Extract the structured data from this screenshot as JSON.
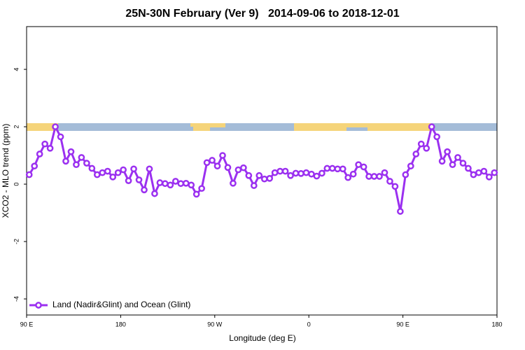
{
  "chart_data": {
    "type": "line",
    "title": "25N-30N February (Ver 9)   2014-09-06 to 2018-12-01",
    "x_label": "Longitude (deg E)",
    "y_label": "XCO2 - MLO trend (ppm)",
    "xlim": [
      90,
      540
    ],
    "xticks": [
      {
        "value": 90,
        "label": "90 E"
      },
      {
        "value": 180,
        "label": "180"
      },
      {
        "value": 270,
        "label": "90 W"
      },
      {
        "value": 360,
        "label": "0"
      },
      {
        "value": 450,
        "label": "90 E"
      },
      {
        "value": 540,
        "label": "180"
      }
    ],
    "ylim": [
      -4.56,
      5.49
    ],
    "yticks": [
      -4,
      -2,
      0,
      2,
      4
    ],
    "legend_position": "bottom-left",
    "x": [
      92.5,
      97.5,
      102.5,
      107.5,
      112.5,
      117.5,
      122.5,
      127.5,
      132.5,
      137.5,
      142.5,
      147.5,
      152.5,
      157.5,
      162.5,
      167.5,
      172.5,
      177.5,
      182.5,
      187.5,
      192.5,
      197.5,
      202.5,
      207.5,
      212.5,
      217.5,
      222.5,
      227.5,
      232.5,
      237.5,
      242.5,
      247.5,
      252.5,
      257.5,
      262.5,
      267.5,
      272.5,
      277.5,
      282.5,
      287.5,
      292.5,
      297.5,
      302.5,
      307.5,
      312.5,
      317.5,
      322.5,
      327.5,
      332.5,
      337.5,
      342.5,
      347.5,
      352.5,
      357.5,
      362.5,
      367.5,
      372.5,
      377.5,
      382.5,
      387.5,
      392.5,
      397.5,
      402.5,
      407.5,
      412.5,
      417.5,
      422.5,
      427.5,
      432.5,
      437.5,
      442.5,
      447.5,
      452.5,
      457.5,
      462.5,
      467.5,
      472.5,
      477.5,
      482.5,
      487.5,
      492.5,
      497.5,
      502.5,
      507.5,
      512.5,
      517.5,
      522.5,
      527.5,
      532.5,
      537.5
    ],
    "series": [
      {
        "name": "Land (Nadir&Glint) and Ocean (Glint)",
        "color": "#9b30f0",
        "values": [
          0.33,
          0.63,
          1.05,
          1.4,
          1.25,
          2.0,
          1.65,
          0.8,
          1.13,
          0.68,
          0.93,
          0.73,
          0.55,
          0.33,
          0.4,
          0.45,
          0.25,
          0.4,
          0.5,
          0.12,
          0.53,
          0.15,
          -0.2,
          0.53,
          -0.33,
          0.05,
          0.02,
          -0.03,
          0.1,
          0.02,
          0.03,
          -0.03,
          -0.35,
          -0.15,
          0.75,
          0.83,
          0.63,
          1.0,
          0.58,
          0.03,
          0.5,
          0.57,
          0.3,
          -0.05,
          0.3,
          0.18,
          0.2,
          0.4,
          0.45,
          0.45,
          0.3,
          0.38,
          0.37,
          0.4,
          0.35,
          0.28,
          0.38,
          0.55,
          0.55,
          0.53,
          0.53,
          0.23,
          0.35,
          0.68,
          0.6,
          0.27,
          0.27,
          0.27,
          0.4,
          0.1,
          -0.08,
          -0.95,
          0.33,
          0.63,
          1.05,
          1.4,
          1.25,
          2.0,
          1.65,
          0.8,
          1.13,
          0.68,
          0.93,
          0.73,
          0.55,
          0.33,
          0.4,
          0.45,
          0.25,
          0.4
        ]
      }
    ]
  }
}
